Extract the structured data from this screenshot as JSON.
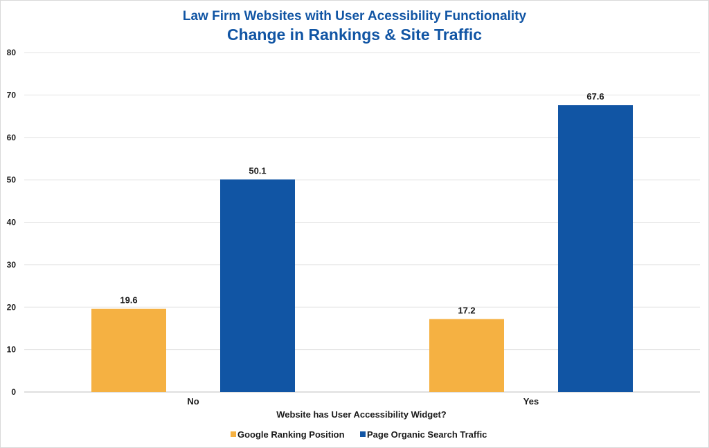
{
  "chart_data": {
    "type": "bar",
    "title": "Law Firm Websites with User Acessibility Functionality",
    "subtitle": "Change in Rankings & Site Traffic",
    "xlabel": "Website has User Accessibility Widget?",
    "ylabel": "",
    "categories": [
      "No",
      "Yes"
    ],
    "series": [
      {
        "name": "Google Ranking Position",
        "color": "#f5b142",
        "values": [
          19.6,
          17.2
        ],
        "labels": [
          "19.6",
          "17.2"
        ]
      },
      {
        "name": "Page Organic Search Traffic",
        "color": "#1155a4",
        "values": [
          50.1,
          67.6
        ],
        "labels": [
          "50.1",
          "67.6"
        ]
      }
    ],
    "ylim": [
      0,
      80
    ],
    "yticks": [
      "0",
      "10",
      "20",
      "30",
      "40",
      "50",
      "60",
      "70",
      "80"
    ],
    "grid": true,
    "legend_position": "bottom"
  }
}
